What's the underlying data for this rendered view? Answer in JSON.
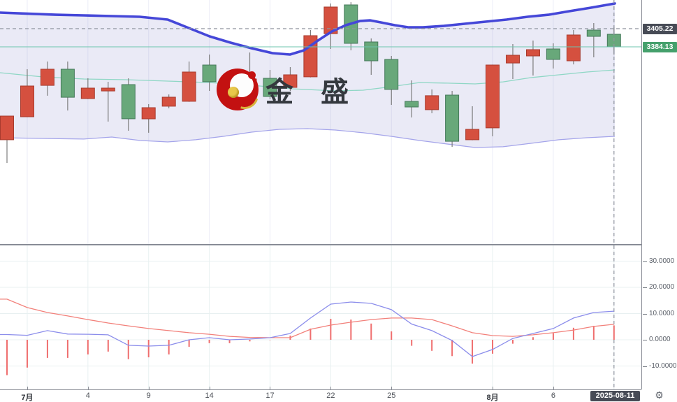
{
  "watermark": {
    "text": "金 盛"
  },
  "icons": {
    "gear_glyph": "⚙"
  },
  "price_axis": {
    "crosshair_badge": "3405.22",
    "last_price_badge": "3384.13"
  },
  "time_axis": {
    "crosshair_date": "2025-08-11"
  },
  "colors": {
    "up_candle": "#d5503f",
    "up_border": "#a83b2e",
    "down_candle": "#68a87a",
    "down_border": "#45795a",
    "wick": "#7d7d7d",
    "boll_upper": "#4547d8",
    "boll_middle": "#8fd7c5",
    "boll_lower": "#a4a4ea",
    "band_fill": "#e9e9f6",
    "last_price_line": "#6cc5ad",
    "crosshair": "#8f949e",
    "macd_dif": "#8b8deb",
    "macd_dea": "#f2807a",
    "macd_hist": "#ef6e6e",
    "badge_dark": "#474b56",
    "badge_green": "#45a06c"
  },
  "chart_data": [
    {
      "type": "candlestick",
      "title": "",
      "x_tick_labels": [
        {
          "label": "7月",
          "candle": 2,
          "bold": true
        },
        {
          "label": "4",
          "candle": 5,
          "bold": false
        },
        {
          "label": "9",
          "candle": 8,
          "bold": false
        },
        {
          "label": "14",
          "candle": 11,
          "bold": false
        },
        {
          "label": "17",
          "candle": 14,
          "bold": false
        },
        {
          "label": "22",
          "candle": 17,
          "bold": false
        },
        {
          "label": "25",
          "candle": 20,
          "bold": false
        },
        {
          "label": "8月",
          "candle": 25,
          "bold": true
        },
        {
          "label": "6",
          "candle": 28,
          "bold": false
        }
      ],
      "crosshair": {
        "price": 3405.22,
        "candle": 31,
        "date": "2025-08-11"
      },
      "last_price": 3384.13,
      "candles": [
        [
          3276.3,
          3304.0,
          3249.5,
          3303.8
        ],
        [
          3303.0,
          3358.2,
          3302.5,
          3338.7
        ],
        [
          3339.5,
          3367.1,
          3327.4,
          3358.2
        ],
        [
          3358.2,
          3367.1,
          3310.3,
          3325.7
        ],
        [
          3324.1,
          3347.6,
          3323.5,
          3336.3
        ],
        [
          3333.0,
          3343.6,
          3297.4,
          3336.3
        ],
        [
          3340.3,
          3347.6,
          3286.8,
          3300.6
        ],
        [
          3300.6,
          3317.6,
          3284.4,
          3313.6
        ],
        [
          3315.2,
          3328.9,
          3312.8,
          3325.7
        ],
        [
          3320.9,
          3367.1,
          3320.3,
          3354.9
        ],
        [
          3363.0,
          3375.2,
          3333.0,
          3343.6
        ],
        [
          3347.6,
          3353.3,
          3324.9,
          3329.0
        ],
        [
          3322.5,
          3377.6,
          3321.9,
          3346.8
        ],
        [
          3347.6,
          3357.4,
          3323.3,
          3326.5
        ],
        [
          3337.1,
          3360.6,
          3333.0,
          3351.7
        ],
        [
          3349.3,
          3403.6,
          3348.7,
          3397.1
        ],
        [
          3399.5,
          3434.4,
          3381.7,
          3430.4
        ],
        [
          3432.8,
          3436.0,
          3380.1,
          3388.2
        ],
        [
          3389.8,
          3393.9,
          3351.7,
          3367.9
        ],
        [
          3369.5,
          3373.6,
          3316.8,
          3334.7
        ],
        [
          3320.9,
          3345.2,
          3302.2,
          3314.4
        ],
        [
          3311.2,
          3334.7,
          3307.1,
          3327.4
        ],
        [
          3328.2,
          3333.0,
          3268.1,
          3274.6
        ],
        [
          3276.3,
          3315.2,
          3275.8,
          3288.4
        ],
        [
          3290.1,
          3363.5,
          3280.3,
          3363.0
        ],
        [
          3365.4,
          3387.4,
          3346.8,
          3374.4
        ],
        [
          3373.6,
          3391.4,
          3350.9,
          3380.9
        ],
        [
          3381.7,
          3388.2,
          3359.0,
          3369.5
        ],
        [
          3367.9,
          3403.6,
          3363.8,
          3397.9
        ],
        [
          3403.6,
          3411.7,
          3372.0,
          3396.3
        ],
        [
          3398.7,
          3407.7,
          3375.2,
          3384.13
        ]
      ],
      "overlays": {
        "bollinger_upper": [
          [
            0,
            3423.9
          ],
          [
            40,
            3422.6
          ],
          [
            80,
            3421.4
          ],
          [
            120,
            3420.6
          ],
          [
            160,
            3419.8
          ],
          [
            200,
            3419.0
          ],
          [
            240,
            3415.8
          ],
          [
            270,
            3406.0
          ],
          [
            300,
            3396.3
          ],
          [
            330,
            3389.0
          ],
          [
            360,
            3382.5
          ],
          [
            390,
            3376.8
          ],
          [
            415,
            3375.2
          ],
          [
            435,
            3380.1
          ],
          [
            455,
            3391.4
          ],
          [
            475,
            3402.0
          ],
          [
            495,
            3409.3
          ],
          [
            515,
            3414.1
          ],
          [
            530,
            3414.9
          ],
          [
            545,
            3412.5
          ],
          [
            565,
            3409.3
          ],
          [
            585,
            3406.8
          ],
          [
            605,
            3406.8
          ],
          [
            635,
            3408.4
          ],
          [
            665,
            3410.9
          ],
          [
            695,
            3413.3
          ],
          [
            725,
            3415.8
          ],
          [
            755,
            3419.0
          ],
          [
            785,
            3421.4
          ],
          [
            815,
            3425.5
          ],
          [
            845,
            3429.5
          ],
          [
            880,
            3434.4
          ]
        ],
        "bollinger_middle": [
          [
            0,
            3354.1
          ],
          [
            60,
            3349.3
          ],
          [
            120,
            3346.8
          ],
          [
            180,
            3346.0
          ],
          [
            240,
            3344.4
          ],
          [
            300,
            3342.7
          ],
          [
            360,
            3339.5
          ],
          [
            420,
            3335.4
          ],
          [
            480,
            3333.0
          ],
          [
            520,
            3333.8
          ],
          [
            560,
            3337.9
          ],
          [
            600,
            3342.7
          ],
          [
            640,
            3342.0
          ],
          [
            680,
            3341.1
          ],
          [
            720,
            3343.5
          ],
          [
            760,
            3348.4
          ],
          [
            800,
            3351.7
          ],
          [
            840,
            3354.9
          ],
          [
            880,
            3357.4
          ]
        ],
        "bollinger_lower": [
          [
            0,
            3278.7
          ],
          [
            60,
            3277.9
          ],
          [
            120,
            3277.1
          ],
          [
            160,
            3279.5
          ],
          [
            200,
            3275.5
          ],
          [
            240,
            3273.8
          ],
          [
            280,
            3276.3
          ],
          [
            320,
            3280.3
          ],
          [
            360,
            3285.2
          ],
          [
            400,
            3288.4
          ],
          [
            440,
            3289.2
          ],
          [
            480,
            3287.6
          ],
          [
            520,
            3284.4
          ],
          [
            560,
            3280.3
          ],
          [
            600,
            3275.5
          ],
          [
            640,
            3271.4
          ],
          [
            680,
            3267.3
          ],
          [
            720,
            3268.2
          ],
          [
            760,
            3272.2
          ],
          [
            800,
            3276.3
          ],
          [
            840,
            3278.7
          ],
          [
            880,
            3280.3
          ]
        ]
      }
    },
    {
      "type": "macd",
      "y_ticks": [
        {
          "label": "30.0000",
          "value": 30
        },
        {
          "label": "20.0000",
          "value": 20
        },
        {
          "label": "10.0000",
          "value": 10
        },
        {
          "label": "0.0000",
          "value": 0
        },
        {
          "label": "-10.0000",
          "value": -10
        }
      ],
      "dif": [
        2.0,
        1.7,
        3.5,
        2.2,
        2.1,
        1.9,
        -2.1,
        -2.4,
        -2.1,
        0.0,
        0.8,
        0.0,
        0.3,
        0.8,
        2.4,
        8.3,
        13.6,
        14.4,
        13.9,
        11.5,
        6.0,
        3.5,
        -0.3,
        -6.4,
        -3.7,
        0.5,
        2.4,
        4.3,
        8.3,
        10.4,
        10.9
      ],
      "dea": [
        15.5,
        12.3,
        10.4,
        9.1,
        7.7,
        6.4,
        5.3,
        4.3,
        3.5,
        2.7,
        2.1,
        1.3,
        0.9,
        0.8,
        0.8,
        4.0,
        5.6,
        6.7,
        7.7,
        8.3,
        8.3,
        7.7,
        5.3,
        2.7,
        1.6,
        1.3,
        1.9,
        2.7,
        3.7,
        5.1,
        5.9
      ],
      "histogram": [
        -13.5,
        -10.6,
        -6.9,
        -6.9,
        -5.6,
        -4.5,
        -7.4,
        -6.7,
        -5.6,
        -2.7,
        -1.3,
        -1.3,
        -0.6,
        -0.1,
        1.6,
        4.3,
        8.0,
        7.7,
        6.2,
        3.2,
        -2.3,
        -4.2,
        -6.2,
        -9.1,
        -5.3,
        -1.5,
        1.0,
        2.5,
        4.6,
        5.3,
        5.5
      ]
    }
  ]
}
